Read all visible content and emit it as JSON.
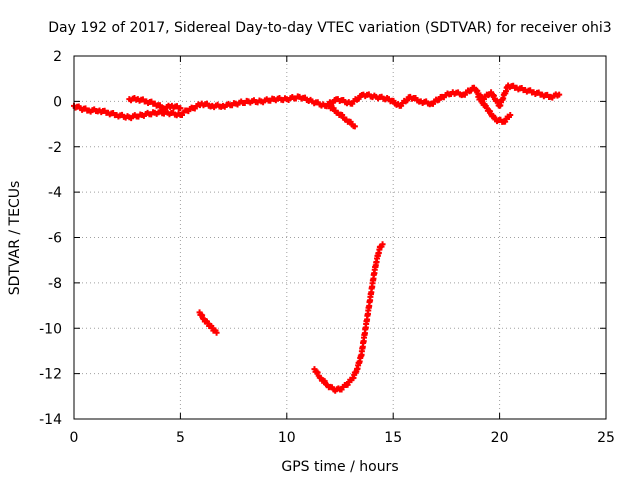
{
  "chart_data": {
    "type": "scatter",
    "title": "Day 192 of 2017, Sidereal Day-to-day VTEC variation (SDTVAR) for receiver ohi3",
    "xlabel": "GPS time / hours",
    "ylabel": "SDTVAR / TECUs",
    "xlim": [
      0,
      25
    ],
    "ylim": [
      -14,
      2
    ],
    "xticks": [
      0,
      5,
      10,
      15,
      20,
      25
    ],
    "yticks": [
      2,
      0,
      -2,
      -4,
      -6,
      -8,
      -10,
      -12,
      -14
    ],
    "grid": true,
    "marker_color": "#ff0000",
    "series": [
      {
        "name": "main-trace",
        "x": [
          0.0,
          0.3,
          0.7,
          1.2,
          1.6,
          2.0,
          2.6,
          3.2,
          3.8,
          4.4,
          5.0,
          5.3,
          5.6,
          6.0,
          6.5,
          7.0,
          7.6,
          8.2,
          8.8,
          9.4,
          10.0,
          10.6,
          11.2,
          11.8,
          12.4,
          13.0,
          13.6,
          14.2,
          14.8,
          15.3,
          15.8,
          16.3,
          16.8,
          17.3,
          17.8,
          18.3,
          18.8,
          19.2,
          19.6,
          20.0,
          20.4,
          20.8,
          21.2,
          21.6,
          22.0,
          22.4,
          22.8
        ],
        "y": [
          -0.2,
          -0.3,
          -0.4,
          -0.4,
          -0.5,
          -0.6,
          -0.7,
          -0.6,
          -0.5,
          -0.5,
          -0.6,
          -0.4,
          -0.3,
          -0.1,
          -0.2,
          -0.2,
          -0.1,
          0.0,
          0.0,
          0.1,
          0.1,
          0.2,
          0.0,
          -0.2,
          0.1,
          -0.1,
          0.3,
          0.2,
          0.1,
          -0.2,
          0.2,
          0.0,
          -0.1,
          0.2,
          0.4,
          0.3,
          0.6,
          0.1,
          0.4,
          -0.2,
          0.7,
          0.6,
          0.5,
          0.4,
          0.3,
          0.2,
          0.3
        ]
      },
      {
        "name": "upper-branch",
        "x": [
          2.6,
          3.0,
          3.4,
          3.8,
          4.2,
          4.6,
          5.0
        ],
        "y": [
          0.1,
          0.1,
          0.0,
          -0.1,
          -0.3,
          -0.2,
          -0.3
        ]
      },
      {
        "name": "lower-dip-12h",
        "x": [
          12.0,
          12.4,
          12.8,
          13.2
        ],
        "y": [
          -0.2,
          -0.5,
          -0.8,
          -1.1
        ]
      },
      {
        "name": "lower-dip-20h",
        "x": [
          19.0,
          19.4,
          19.8,
          20.2,
          20.5
        ],
        "y": [
          0.2,
          -0.3,
          -0.8,
          -0.9,
          -0.6
        ]
      },
      {
        "name": "segment-6h",
        "x": [
          5.9,
          6.1,
          6.3,
          6.5,
          6.7
        ],
        "y": [
          -9.3,
          -9.6,
          -9.8,
          -10.0,
          -10.2
        ]
      },
      {
        "name": "segment-12h",
        "x": [
          11.3,
          11.6,
          11.9,
          12.2,
          12.5,
          12.8,
          13.1,
          13.3,
          13.5,
          13.6,
          13.7,
          13.8,
          13.9,
          14.0,
          14.1,
          14.2,
          14.3,
          14.4,
          14.5
        ],
        "y": [
          -11.8,
          -12.2,
          -12.5,
          -12.7,
          -12.7,
          -12.5,
          -12.2,
          -11.8,
          -11.2,
          -10.6,
          -10.0,
          -9.4,
          -8.8,
          -8.2,
          -7.6,
          -7.1,
          -6.7,
          -6.4,
          -6.3
        ]
      }
    ]
  }
}
